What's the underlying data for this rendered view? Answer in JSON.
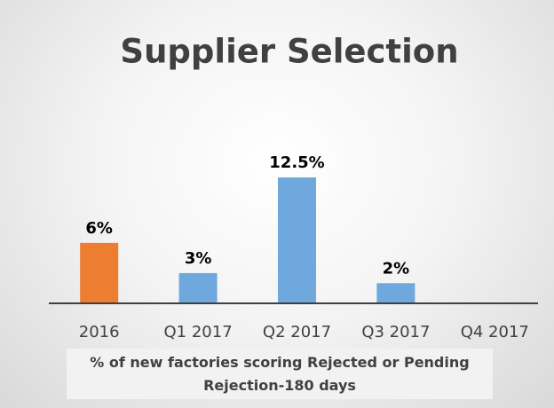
{
  "chart_data": {
    "type": "bar",
    "title": "Supplier Selection",
    "categories": [
      "2016",
      "Q1 2017",
      "Q2 2017",
      "Q3 2017",
      "Q4 2017"
    ],
    "values": [
      6,
      3,
      12.5,
      2,
      null
    ],
    "value_labels": [
      "6%",
      "3%",
      "12.5%",
      "2%",
      null
    ],
    "colors": [
      "#ed7d31",
      "#6fa8dc",
      "#6fa8dc",
      "#6fa8dc",
      "#6fa8dc"
    ],
    "ylim": [
      0,
      14
    ],
    "xlabel": "% of new factories scoring Rejected or Pending Rejection-180 days"
  }
}
